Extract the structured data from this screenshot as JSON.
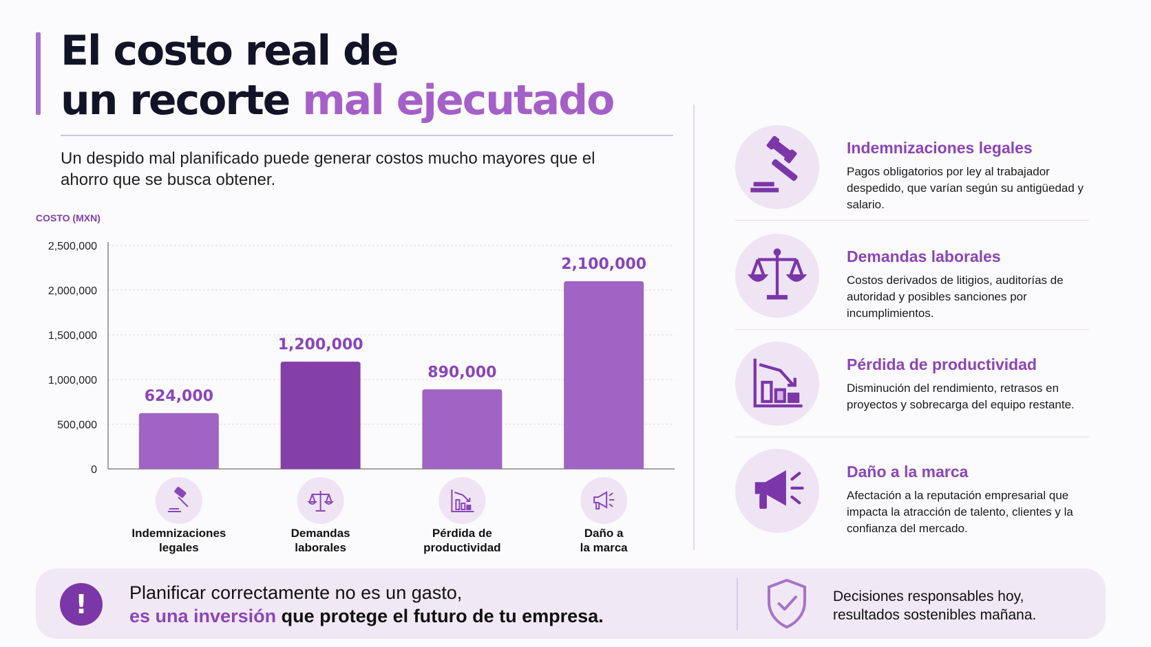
{
  "header": {
    "title_line1": "El costo real de",
    "title_line2_plain": "un recorte",
    "title_line2_highlight": "mal ejecutado",
    "subtitle": "Un despido mal planificado puede generar costos mucho mayores que el ahorro que se busca obtener."
  },
  "chart_data": {
    "type": "bar",
    "ylabel": "COSTO (MXN)",
    "categories": [
      "Indemnizaciones legales",
      "Demandas laborales",
      "Pérdida de productividad",
      "Daño a la marca"
    ],
    "category_lines": [
      [
        "Indemnizaciones",
        "legales"
      ],
      [
        "Demandas",
        "laborales"
      ],
      [
        "Pérdida de",
        "productividad"
      ],
      [
        "Daño a",
        "la marca"
      ]
    ],
    "values": [
      624000,
      1200000,
      890000,
      2100000
    ],
    "value_labels": [
      "624,000",
      "1,200,000",
      "890,000",
      "2,100,000"
    ],
    "category_icons": [
      "gavel-icon",
      "scales-icon",
      "declining-chart-icon",
      "megaphone-icon"
    ],
    "yticks": [
      0,
      500000,
      1000000,
      1500000,
      2000000,
      2500000
    ],
    "ytick_labels": [
      "0",
      "500,000",
      "1,000,000",
      "1,500,000",
      "2,000,000",
      "2,500,000"
    ],
    "ylim": [
      0,
      2500000
    ],
    "grid": true,
    "bar_colors": [
      "#a064c4",
      "#8440a8",
      "#a064c4",
      "#a064c4"
    ]
  },
  "details": [
    {
      "icon": "gavel-icon",
      "title": "Indemnizaciones legales",
      "description": "Pagos obligatorios por ley al trabajador despedido, que varían según su antigüedad y salario."
    },
    {
      "icon": "scales-icon",
      "title": "Demandas laborales",
      "description": "Costos derivados de litigios, auditorías de autoridad y posibles sanciones por incumplimientos."
    },
    {
      "icon": "declining-chart-icon",
      "title": "Pérdida de productividad",
      "description": "Disminución del rendimiento, retrasos en proyectos y sobrecarga del equipo restante."
    },
    {
      "icon": "megaphone-icon",
      "title": "Daño a la marca",
      "description": "Afectación a la reputación empresarial que impacta la atracción de talento, clientes y la confianza del mercado."
    }
  ],
  "banner": {
    "icon": "exclamation-icon",
    "line1": "Planificar correctamente no es un gasto,",
    "line2_highlight": "es una inversión",
    "line2_rest": "que protege el futuro de tu empresa.",
    "shield_icon": "shield-check-icon",
    "closing": "Decisiones responsables hoy, resultados sostenibles mañana."
  },
  "colors": {
    "accent": "#a460c8",
    "accent_dark": "#7b36a8",
    "title": "#111427",
    "icon_bg": "#eee4f4"
  }
}
